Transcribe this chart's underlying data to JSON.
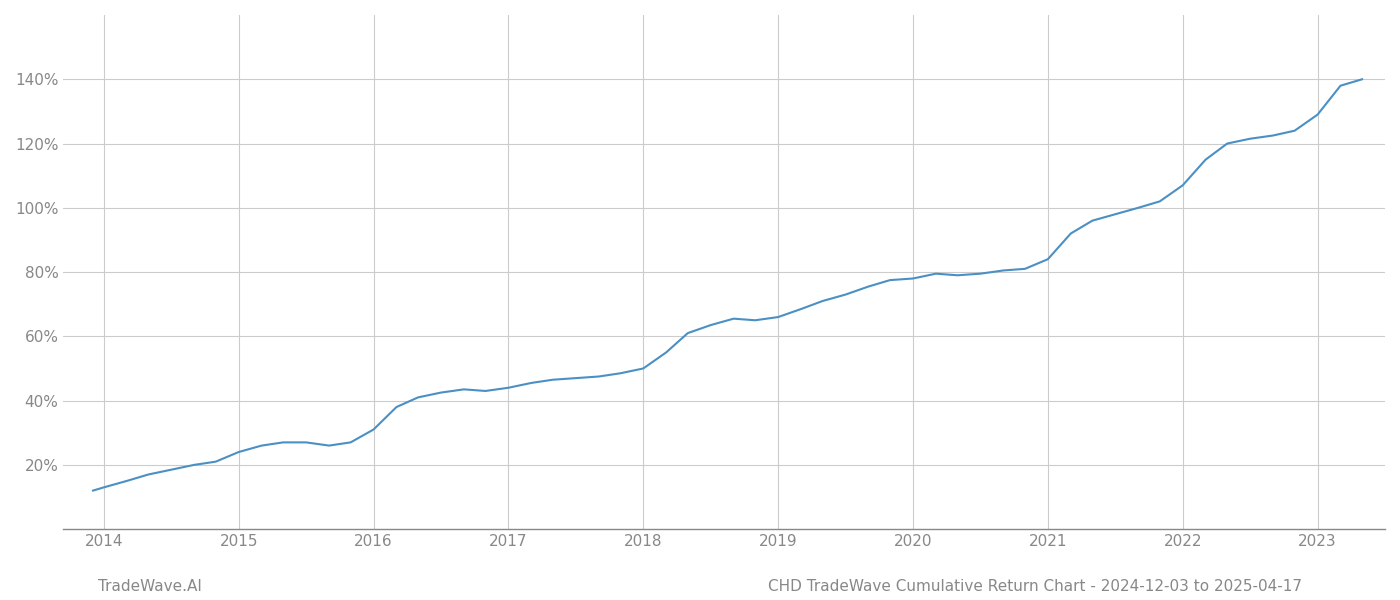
{
  "title": "CHD TradeWave Cumulative Return Chart - 2024-12-03 to 2025-04-17",
  "watermark": "TradeWave.AI",
  "line_color": "#4a90c4",
  "background_color": "#ffffff",
  "grid_color": "#cccccc",
  "x_years": [
    2014,
    2015,
    2016,
    2017,
    2018,
    2019,
    2020,
    2021,
    2022,
    2023
  ],
  "x_data": [
    2013.92,
    2014.0,
    2014.17,
    2014.33,
    2014.5,
    2014.67,
    2014.83,
    2015.0,
    2015.17,
    2015.33,
    2015.5,
    2015.67,
    2015.83,
    2016.0,
    2016.17,
    2016.33,
    2016.5,
    2016.67,
    2016.83,
    2017.0,
    2017.17,
    2017.33,
    2017.5,
    2017.67,
    2017.83,
    2018.0,
    2018.17,
    2018.33,
    2018.5,
    2018.67,
    2018.83,
    2019.0,
    2019.17,
    2019.33,
    2019.5,
    2019.67,
    2019.83,
    2020.0,
    2020.17,
    2020.33,
    2020.5,
    2020.67,
    2020.83,
    2021.0,
    2021.17,
    2021.33,
    2021.5,
    2021.67,
    2021.83,
    2022.0,
    2022.17,
    2022.33,
    2022.5,
    2022.67,
    2022.83,
    2023.0,
    2023.17,
    2023.33
  ],
  "y_data": [
    12,
    13,
    15,
    17,
    18.5,
    20,
    21,
    24,
    26,
    27,
    27,
    26,
    27,
    31,
    38,
    41,
    42.5,
    43.5,
    43,
    44,
    45.5,
    46.5,
    47,
    47.5,
    48.5,
    50,
    55,
    61,
    63.5,
    65.5,
    65,
    66,
    68.5,
    71,
    73,
    75.5,
    77.5,
    78,
    79.5,
    79,
    79.5,
    80.5,
    81,
    84,
    92,
    96,
    98,
    100,
    102,
    107,
    115,
    120,
    121.5,
    122.5,
    124,
    129,
    138,
    140
  ],
  "ylim": [
    0,
    160
  ],
  "yticks": [
    20,
    40,
    60,
    80,
    100,
    120,
    140
  ],
  "xlim": [
    2013.7,
    2023.5
  ],
  "title_fontsize": 11,
  "watermark_fontsize": 11,
  "axis_color": "#888888",
  "tick_color": "#888888",
  "line_width": 1.5
}
